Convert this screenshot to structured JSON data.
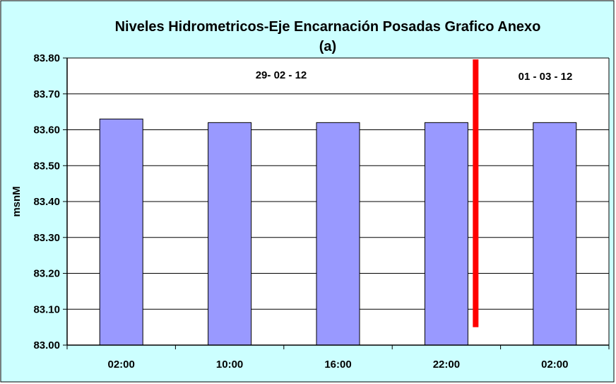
{
  "chart_data": {
    "type": "bar",
    "title": "Niveles Hidrometricos-Eje Encarnación Posadas Grafico Anexo",
    "subtitle": "(a)",
    "xlabel": "",
    "ylabel": "msnM",
    "categories": [
      "02:00",
      "10:00",
      "16:00",
      "22:00",
      "02:00"
    ],
    "values": [
      83.63,
      83.62,
      83.62,
      83.62,
      83.62
    ],
    "ylim": [
      83.0,
      83.8
    ],
    "yticks": [
      "83.00",
      "83.10",
      "83.20",
      "83.30",
      "83.40",
      "83.50",
      "83.60",
      "83.70",
      "83.80"
    ],
    "grid": true,
    "legend": "none",
    "annotations": [
      "29- 02 - 12",
      "01 - 03 - 12"
    ],
    "date_separator_after_category": 3,
    "colors": {
      "background": "#CCFFFF",
      "plot_area": "#FFFFFF",
      "bar_fill": "#9999FF",
      "bar_stroke": "#000000",
      "separator": "#FF0000",
      "gridline": "#000000"
    }
  }
}
